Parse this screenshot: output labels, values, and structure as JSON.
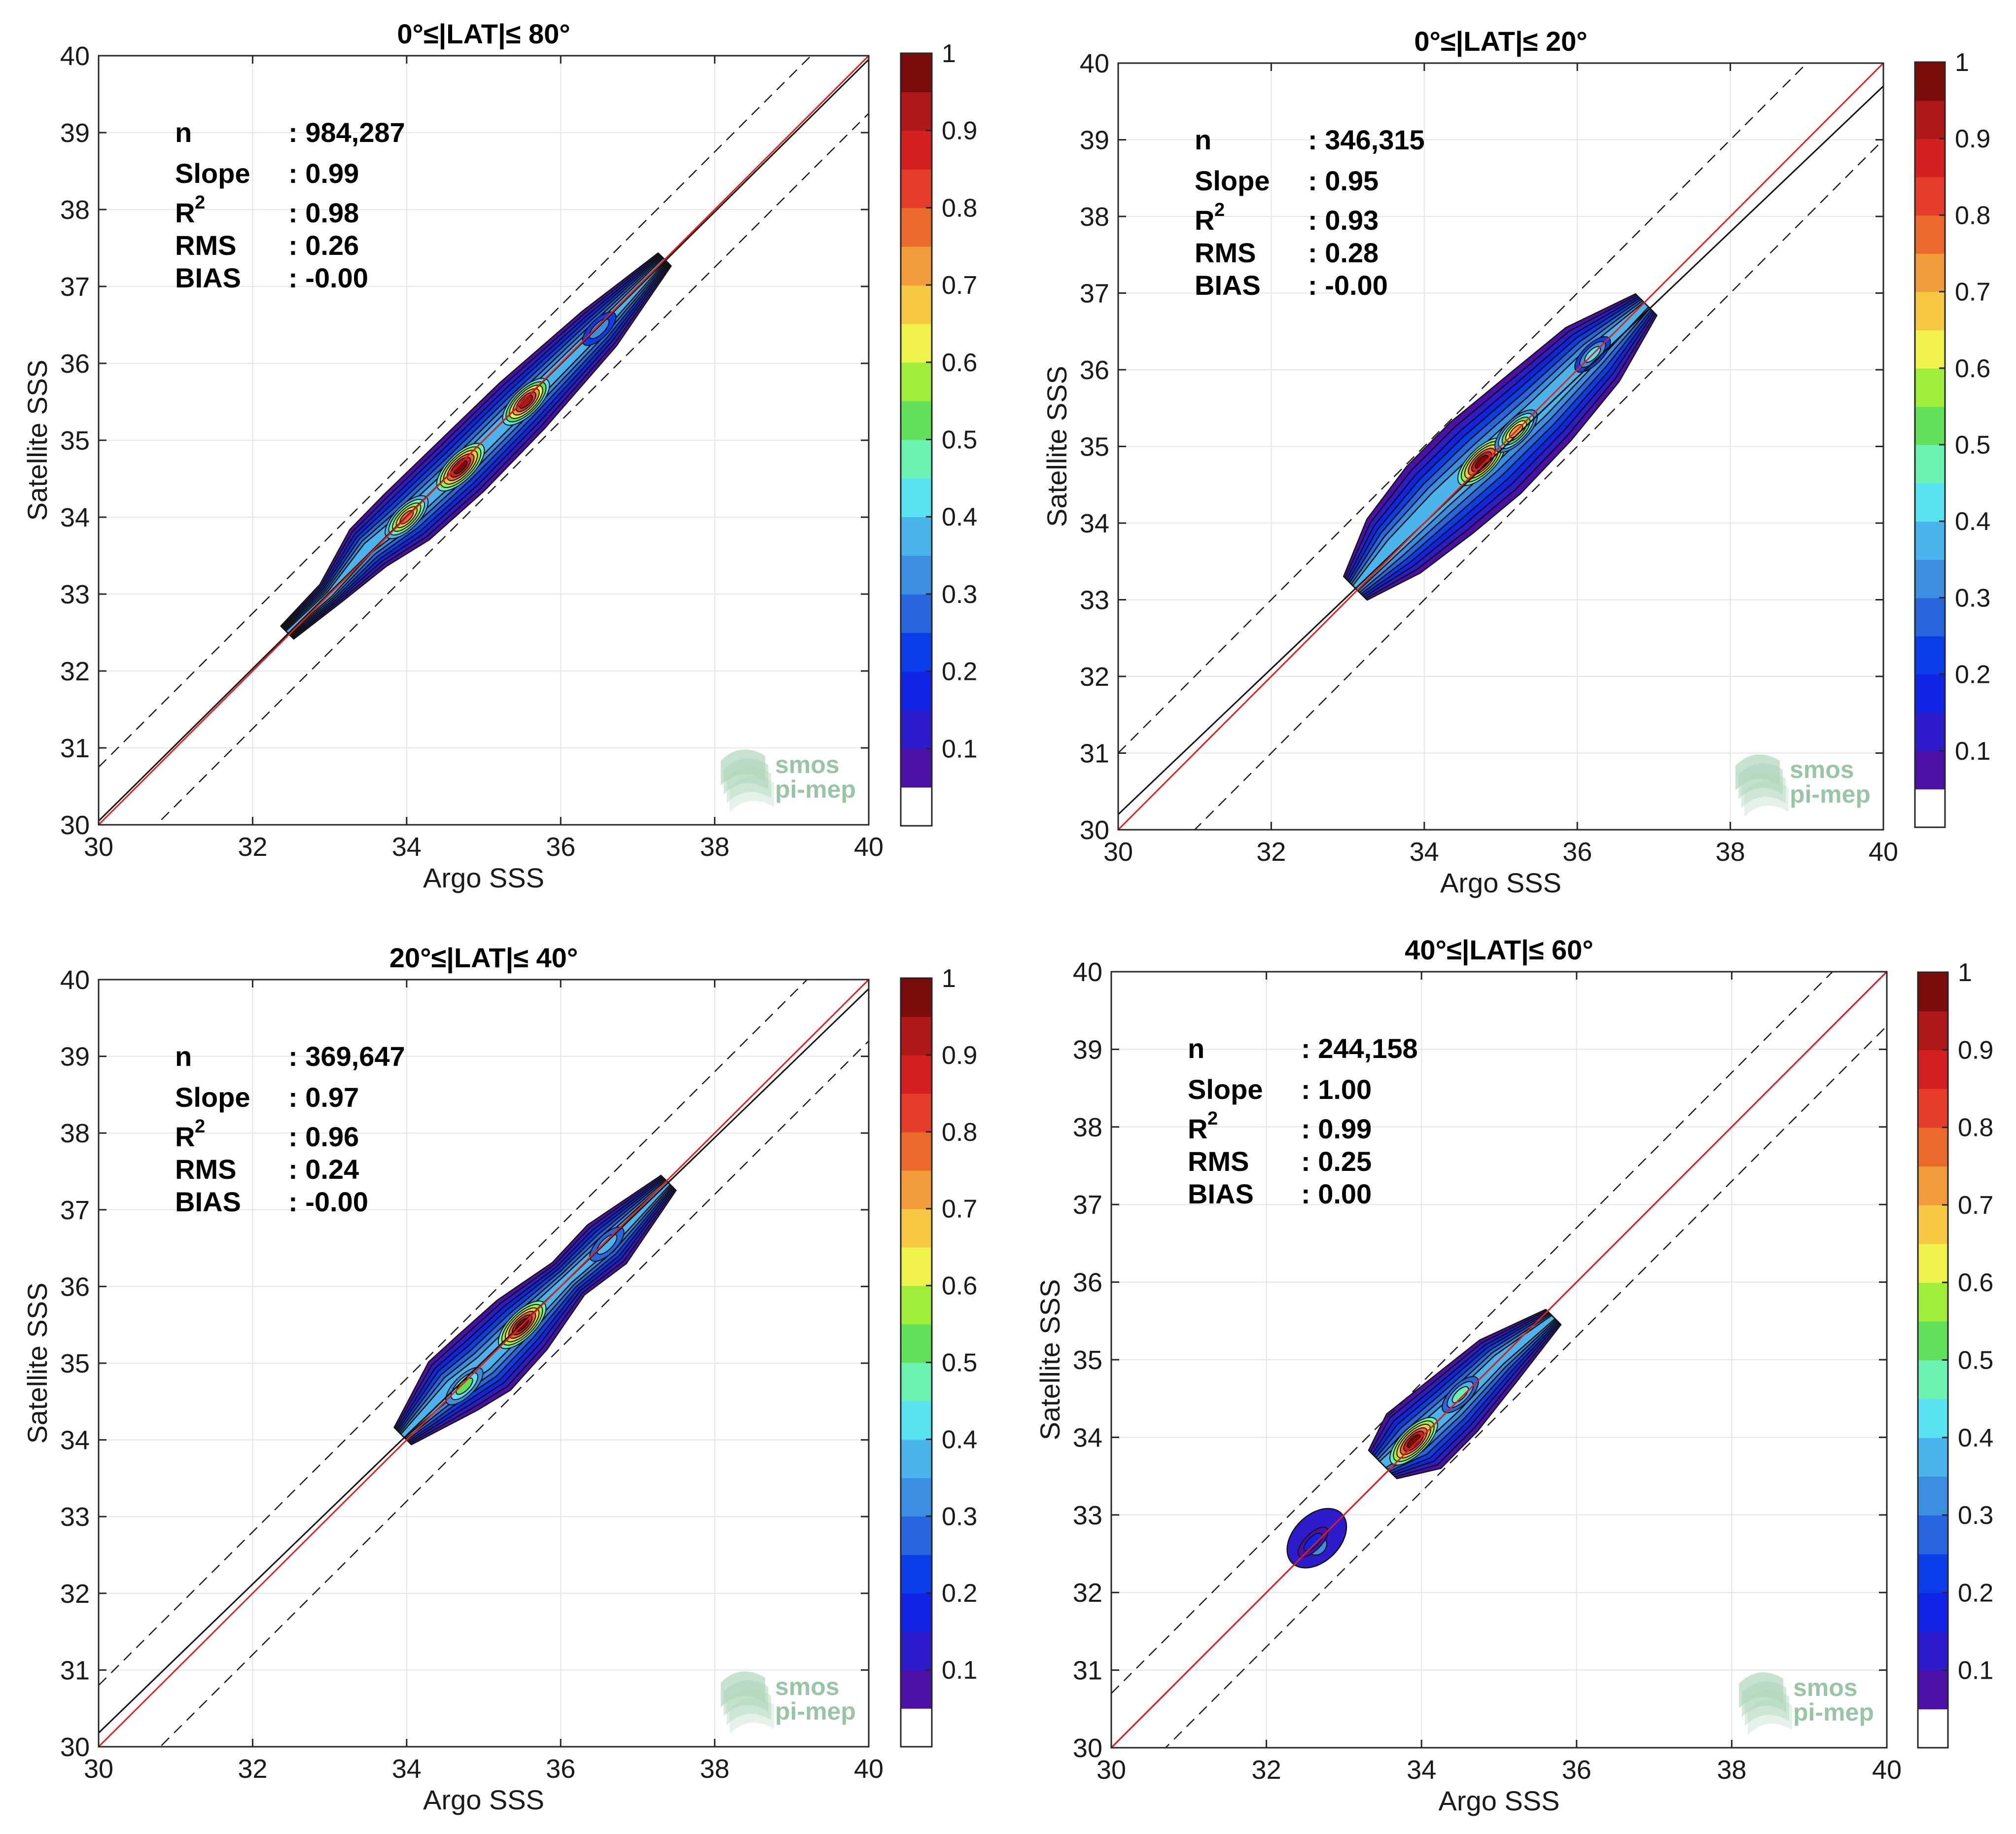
{
  "figure": {
    "watermark": [
      "smos",
      "pi-mep"
    ],
    "colorbar_ticks": [
      "0.1",
      "0.2",
      "0.3",
      "0.4",
      "0.5",
      "0.6",
      "0.7",
      "0.8",
      "0.9",
      "1"
    ],
    "colormap": [
      "#ffffff",
      "#4a10a8",
      "#2d1ccc",
      "#1124e6",
      "#0b3ee8",
      "#2866e0",
      "#3b8ee0",
      "#4bb4ec",
      "#58e4f2",
      "#6cf2b2",
      "#62e05a",
      "#a0ee3a",
      "#eef24a",
      "#f6c843",
      "#f29b3b",
      "#ea6a2c",
      "#e63c2a",
      "#d42020",
      "#ae1818",
      "#7a0c0c"
    ],
    "line_colors": {
      "identity": "#e02020",
      "fit": "#101010",
      "bounds": "#1a1a1a"
    },
    "stat_labels": {
      "n": "n",
      "slope": "Slope",
      "r2_base": "R",
      "r2_sup": "2",
      "rms": "RMS",
      "bias": "BIAS"
    }
  },
  "chart_data": [
    {
      "type": "contour-density-scatter",
      "title": "0°≤|LAT|≤ 80°",
      "xlabel": "Argo SSS",
      "ylabel": "Satellite SSS",
      "xlim": [
        30,
        40
      ],
      "ylim": [
        30,
        40
      ],
      "xticks": [
        30,
        32,
        34,
        36,
        38,
        40
      ],
      "yticks": [
        30,
        31,
        32,
        33,
        34,
        35,
        36,
        37,
        38,
        39,
        40
      ],
      "grid": true,
      "colorbar": {
        "range": [
          0,
          1
        ],
        "ticks": [
          0.1,
          0.2,
          0.3,
          0.4,
          0.5,
          0.6,
          0.7,
          0.8,
          0.9,
          1
        ]
      },
      "stats": {
        "n": ": 984,287",
        "slope": ": 0.99",
        "r2": ": 0.98",
        "rms": ": 0.26",
        "bias": ": -0.00"
      },
      "fit_line": {
        "slope": 0.99,
        "intercept": 0.35
      },
      "bound_offset": 0.75,
      "density_spine": [
        [
          32.45,
          32.5
        ],
        [
          33.0,
          33.0
        ],
        [
          33.5,
          33.6
        ],
        [
          34.0,
          34.0
        ],
        [
          34.7,
          34.65
        ],
        [
          35.5,
          35.45
        ],
        [
          36.5,
          36.45
        ],
        [
          37.35,
          37.35
        ]
      ],
      "density_halfwidth": [
        0.12,
        0.18,
        0.34,
        0.42,
        0.44,
        0.42,
        0.32,
        0.12
      ],
      "peaks": [
        [
          34.7,
          34.65,
          1.0
        ],
        [
          35.55,
          35.5,
          0.96
        ],
        [
          34.0,
          34.0,
          0.78
        ],
        [
          36.5,
          36.45,
          0.32
        ]
      ]
    },
    {
      "type": "contour-density-scatter",
      "title": "0°≤|LAT|≤ 20°",
      "xlabel": "Argo SSS",
      "ylabel": "Satellite SSS",
      "xlim": [
        30,
        40
      ],
      "ylim": [
        30,
        40
      ],
      "xticks": [
        30,
        32,
        34,
        36,
        38,
        40
      ],
      "yticks": [
        30,
        31,
        32,
        33,
        34,
        35,
        36,
        37,
        38,
        39,
        40
      ],
      "grid": true,
      "colorbar": {
        "range": [
          0,
          1
        ],
        "ticks": [
          0.1,
          0.2,
          0.3,
          0.4,
          0.5,
          0.6,
          0.7,
          0.8,
          0.9,
          1
        ]
      },
      "stats": {
        "n": ": 346,315",
        "slope": ": 0.95",
        "r2": ": 0.93",
        "rms": ": 0.28",
        "bias": ": -0.00"
      },
      "fit_line": {
        "slope": 0.95,
        "intercept": 1.7
      },
      "bound_offset": 1.0,
      "density_spine": [
        [
          33.1,
          33.15
        ],
        [
          33.6,
          33.7
        ],
        [
          34.2,
          34.3
        ],
        [
          34.8,
          34.85
        ],
        [
          35.5,
          35.5
        ],
        [
          36.2,
          36.2
        ],
        [
          36.9,
          36.85
        ]
      ],
      "density_halfwidth": [
        0.22,
        0.5,
        0.62,
        0.66,
        0.6,
        0.5,
        0.2
      ],
      "peaks": [
        [
          34.75,
          34.8,
          1.0
        ],
        [
          35.2,
          35.2,
          0.75
        ],
        [
          36.2,
          36.2,
          0.42
        ]
      ]
    },
    {
      "type": "contour-density-scatter",
      "title": "20°≤|LAT|≤ 40°",
      "xlabel": "Argo SSS",
      "ylabel": "Satellite SSS",
      "xlim": [
        30,
        40
      ],
      "ylim": [
        30,
        40
      ],
      "xticks": [
        30,
        32,
        34,
        36,
        38,
        40
      ],
      "yticks": [
        30,
        31,
        32,
        33,
        34,
        35,
        36,
        37,
        38,
        39,
        40
      ],
      "grid": true,
      "colorbar": {
        "range": [
          0,
          1
        ],
        "ticks": [
          0.1,
          0.2,
          0.3,
          0.4,
          0.5,
          0.6,
          0.7,
          0.8,
          0.9,
          1
        ]
      },
      "stats": {
        "n": ": 369,647",
        "slope": ": 0.97",
        "r2": ": 0.96",
        "rms": ": 0.24",
        "bias": ": -0.00"
      },
      "fit_line": {
        "slope": 0.97,
        "intercept": 1.08
      },
      "bound_offset": 0.8,
      "density_spine": [
        [
          33.95,
          34.05
        ],
        [
          34.6,
          34.7
        ],
        [
          35.0,
          35.0
        ],
        [
          35.5,
          35.5
        ],
        [
          36.1,
          36.1
        ],
        [
          36.6,
          36.55
        ],
        [
          37.4,
          37.35
        ]
      ],
      "density_halfwidth": [
        0.16,
        0.45,
        0.5,
        0.46,
        0.3,
        0.36,
        0.14
      ],
      "peaks": [
        [
          35.5,
          35.5,
          1.0
        ],
        [
          34.75,
          34.7,
          0.5
        ],
        [
          36.6,
          36.55,
          0.35
        ]
      ]
    },
    {
      "type": "contour-density-scatter",
      "title": "40°≤|LAT|≤ 60°",
      "xlabel": "Argo SSS",
      "ylabel": "Satellite SSS",
      "xlim": [
        30,
        40
      ],
      "ylim": [
        30,
        40
      ],
      "xticks": [
        30,
        32,
        34,
        36,
        38,
        40
      ],
      "yticks": [
        30,
        31,
        32,
        33,
        34,
        35,
        36,
        37,
        38,
        39,
        40
      ],
      "grid": true,
      "colorbar": {
        "range": [
          0,
          1
        ],
        "ticks": [
          0.1,
          0.2,
          0.3,
          0.4,
          0.5,
          0.6,
          0.7,
          0.8,
          0.9,
          1
        ]
      },
      "stats": {
        "n": ": 244,158",
        "slope": ": 1.00",
        "r2": ": 0.99",
        "rms": ": 0.25",
        "bias": ": 0.00"
      },
      "fit_line": {
        "slope": 1.0,
        "intercept": 0.0
      },
      "bound_offset": 0.7,
      "density_spine": [
        [
          33.5,
          33.65
        ],
        [
          33.9,
          33.95
        ],
        [
          34.4,
          34.4
        ],
        [
          35.0,
          35.0
        ],
        [
          35.7,
          35.55
        ]
      ],
      "density_halfwidth": [
        0.26,
        0.5,
        0.46,
        0.36,
        0.14
      ],
      "second_blob": {
        "center": [
          32.65,
          32.7
        ],
        "halfwidth": 0.3,
        "length": 0.45
      },
      "peaks": [
        [
          33.9,
          33.95,
          1.0
        ],
        [
          34.5,
          34.55,
          0.45
        ],
        [
          32.6,
          32.65,
          0.15
        ]
      ]
    }
  ]
}
